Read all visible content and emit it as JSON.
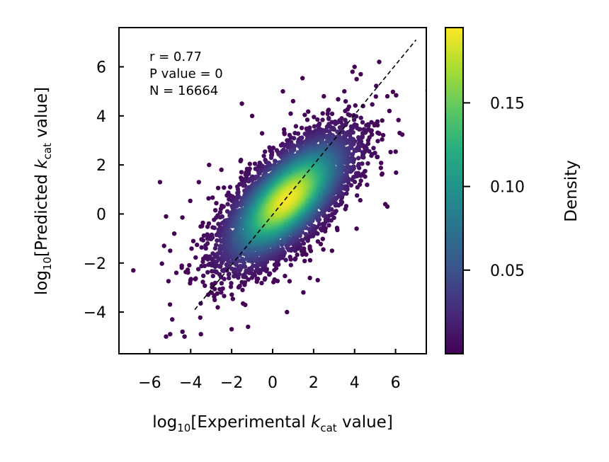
{
  "chart_data": {
    "type": "scatter",
    "title": "",
    "xlabel": {
      "prefix": "log",
      "sub": "10",
      "mid": "[Experimental ",
      "k": "k",
      "ksub": "cat",
      "suffix": " value]"
    },
    "ylabel": {
      "prefix": "log",
      "sub": "10",
      "mid": "[Predicted ",
      "k": "k",
      "ksub": "cat",
      "suffix": " value]"
    },
    "xlim": [
      -7.5,
      7.5
    ],
    "ylim": [
      -5.7,
      7.6
    ],
    "xticks": [
      {
        "value": -6,
        "label": "−6"
      },
      {
        "value": -4,
        "label": "−4"
      },
      {
        "value": -2,
        "label": "−2"
      },
      {
        "value": 0,
        "label": "0"
      },
      {
        "value": 2,
        "label": "2"
      },
      {
        "value": 4,
        "label": "4"
      },
      {
        "value": 6,
        "label": "6"
      }
    ],
    "yticks": [
      {
        "value": -4,
        "label": "−4"
      },
      {
        "value": -2,
        "label": "−2"
      },
      {
        "value": 0,
        "label": "0"
      },
      {
        "value": 2,
        "label": "2"
      },
      {
        "value": 4,
        "label": "4"
      },
      {
        "value": 6,
        "label": "6"
      }
    ],
    "annotations": [
      "r = 0.77",
      "P value = 0",
      "N = 16664"
    ],
    "reference_line": {
      "style": "dashed",
      "color": "#000000",
      "from": [
        -3.8,
        -3.9
      ],
      "to": [
        7.0,
        7.1
      ]
    },
    "colorbar": {
      "label": "Density",
      "colormap": "viridis",
      "range": [
        0.0,
        0.195
      ],
      "ticks": [
        {
          "value": 0.05,
          "label": "0.05"
        },
        {
          "value": 0.1,
          "label": "0.10"
        },
        {
          "value": 0.15,
          "label": "0.15"
        }
      ]
    },
    "density_core": {
      "center": [
        0.7,
        0.6
      ],
      "major_axis_slope": 0.78
    },
    "outliers": [
      [
        -6.8,
        -2.3
      ],
      [
        -5.5,
        1.3
      ],
      [
        -5.0,
        -4.9
      ],
      [
        -5.2,
        -5.0
      ],
      [
        -4.9,
        -4.3
      ],
      [
        -4.4,
        -4.8
      ],
      [
        -4.3,
        -5.0
      ],
      [
        -3.5,
        -4.9
      ],
      [
        -4.7,
        -2.4
      ],
      [
        -5.3,
        -1.3
      ],
      [
        -4.8,
        -0.8
      ],
      [
        -5.0,
        -1.5
      ],
      [
        -5.2,
        -0.1
      ],
      [
        -3.6,
        1.3
      ],
      [
        -2.5,
        1.8
      ],
      [
        -3.1,
        2.0
      ],
      [
        -1.5,
        4.5
      ],
      [
        -1.0,
        4.0
      ],
      [
        0.5,
        5.0
      ],
      [
        1.0,
        4.6
      ],
      [
        2.5,
        4.8
      ],
      [
        3.5,
        5.0
      ],
      [
        4.1,
        5.5
      ],
      [
        3.9,
        5.8
      ],
      [
        4.3,
        5.7
      ],
      [
        4.0,
        6.0
      ],
      [
        5.2,
        6.2
      ],
      [
        5.6,
        4.8
      ],
      [
        5.7,
        4.2
      ],
      [
        6.2,
        3.3
      ],
      [
        5.5,
        0.4
      ],
      [
        5.6,
        0.3
      ],
      [
        3.6,
        1.9
      ],
      [
        2.9,
        -1.5
      ],
      [
        4.1,
        -0.6
      ],
      [
        2.2,
        -2.7
      ],
      [
        1.5,
        -3.2
      ],
      [
        -1.2,
        -4.6
      ],
      [
        -2.0,
        -4.7
      ],
      [
        0.7,
        -4.0
      ]
    ]
  }
}
